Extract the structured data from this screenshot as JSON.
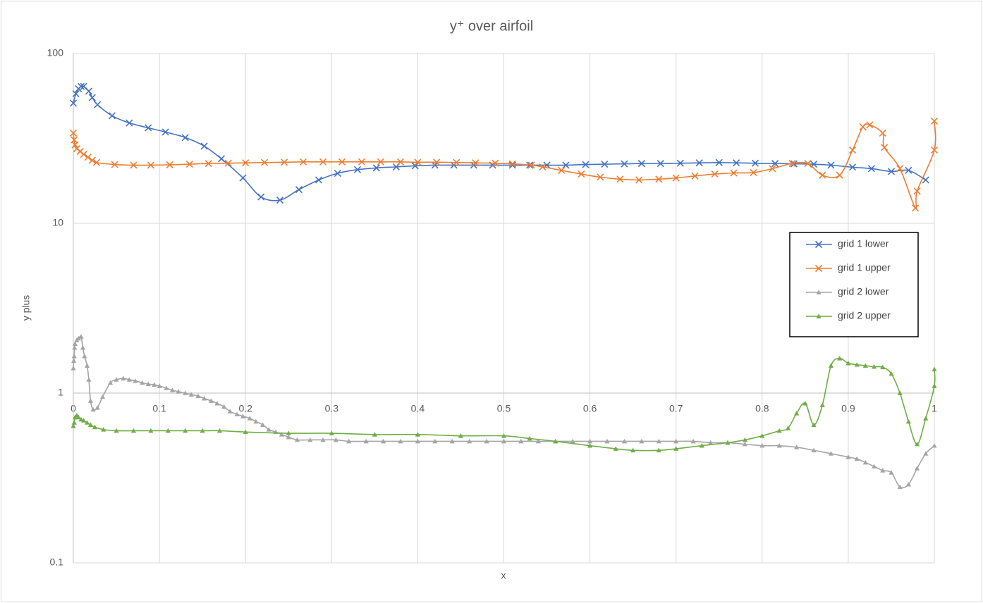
{
  "chart_data": {
    "type": "scatter",
    "title": "y⁺ over airfoil",
    "x_label": "x",
    "y_label": "y plus",
    "xlim": [
      0,
      1
    ],
    "xticks": [
      0,
      0.1,
      0.2,
      0.3,
      0.4,
      0.5,
      0.6,
      0.7,
      0.8,
      0.9,
      1
    ],
    "ylim": [
      0.1,
      100
    ],
    "yticks": [
      0.1,
      1,
      10,
      100
    ],
    "y_log": true,
    "x_axis_crosses": 1,
    "grid": true,
    "smooth": true,
    "legend": "right",
    "series": [
      {
        "name": "grid 1 lower",
        "color": "#4472c4",
        "marker": "x",
        "x": [
          0,
          0.003,
          0.006,
          0.009,
          0.012,
          0.018,
          0.022,
          0.028,
          0.045,
          0.065,
          0.087,
          0.107,
          0.13,
          0.152,
          0.172,
          0.197,
          0.218,
          0.24,
          0.262,
          0.285,
          0.307,
          0.33,
          0.352,
          0.375,
          0.397,
          0.42,
          0.442,
          0.465,
          0.487,
          0.51,
          0.53,
          0.55,
          0.572,
          0.595,
          0.617,
          0.64,
          0.66,
          0.682,
          0.705,
          0.727,
          0.75,
          0.77,
          0.792,
          0.815,
          0.837,
          0.86,
          0.88,
          0.905,
          0.927,
          0.95,
          0.97,
          0.99
        ],
        "values": [
          51,
          58,
          62,
          64,
          64,
          60,
          55,
          50,
          43,
          39,
          36.5,
          34.5,
          32,
          28.5,
          24,
          18.5,
          14.3,
          13.7,
          15.8,
          18,
          19.7,
          20.7,
          21.2,
          21.5,
          21.8,
          22,
          22,
          22,
          22,
          22,
          22,
          22,
          22,
          22.2,
          22.3,
          22.4,
          22.5,
          22.5,
          22.6,
          22.7,
          22.8,
          22.7,
          22.6,
          22.5,
          22.4,
          22.3,
          22,
          21.4,
          21,
          20.2,
          20.5,
          18
        ]
      },
      {
        "name": "grid 1 upper",
        "color": "#ed7d31",
        "marker": "x",
        "x": [
          0,
          0.001,
          0.002,
          0.004,
          0.008,
          0.012,
          0.017,
          0.022,
          0.027,
          0.048,
          0.07,
          0.09,
          0.112,
          0.135,
          0.157,
          0.18,
          0.2,
          0.222,
          0.245,
          0.267,
          0.29,
          0.312,
          0.335,
          0.357,
          0.38,
          0.4,
          0.422,
          0.445,
          0.467,
          0.49,
          0.51,
          0.532,
          0.545,
          0.567,
          0.59,
          0.612,
          0.635,
          0.657,
          0.68,
          0.7,
          0.722,
          0.745,
          0.767,
          0.79,
          0.812,
          0.835,
          0.853,
          0.87,
          0.89,
          0.905,
          0.917,
          0.925,
          0.94,
          0.942,
          0.96,
          0.978,
          0.98,
          1,
          1
        ],
        "values": [
          34,
          31,
          29,
          27.5,
          26.5,
          25.5,
          24.5,
          23.5,
          22.8,
          22.2,
          22,
          22,
          22.1,
          22.3,
          22.5,
          22.6,
          22.7,
          22.8,
          22.9,
          23,
          23,
          23,
          23,
          23,
          23,
          22.9,
          22.9,
          22.8,
          22.7,
          22.6,
          22.4,
          22,
          21.5,
          20.5,
          19.5,
          18.7,
          18.2,
          18,
          18.2,
          18.5,
          19,
          19.5,
          19.8,
          19.9,
          21,
          22.5,
          22.5,
          19.2,
          19.2,
          27,
          37,
          38,
          34,
          28,
          21,
          12.3,
          15.5,
          27,
          40
        ]
      },
      {
        "name": "grid 2 lower",
        "color": "#a5a5a5",
        "marker": "triangle",
        "x": [
          0,
          0.0005,
          0.001,
          0.0015,
          0.002,
          0.004,
          0.006,
          0.009,
          0.011,
          0.013,
          0.016,
          0.018,
          0.02,
          0.023,
          0.028,
          0.034,
          0.043,
          0.05,
          0.058,
          0.065,
          0.072,
          0.08,
          0.087,
          0.094,
          0.1,
          0.108,
          0.115,
          0.122,
          0.13,
          0.137,
          0.145,
          0.152,
          0.16,
          0.167,
          0.175,
          0.182,
          0.19,
          0.197,
          0.205,
          0.212,
          0.22,
          0.227,
          0.235,
          0.242,
          0.25,
          0.26,
          0.275,
          0.29,
          0.305,
          0.32,
          0.34,
          0.36,
          0.38,
          0.4,
          0.42,
          0.44,
          0.46,
          0.48,
          0.5,
          0.52,
          0.54,
          0.56,
          0.58,
          0.6,
          0.62,
          0.64,
          0.66,
          0.68,
          0.7,
          0.72,
          0.74,
          0.76,
          0.78,
          0.8,
          0.82,
          0.84,
          0.86,
          0.88,
          0.9,
          0.91,
          0.92,
          0.93,
          0.94,
          0.95,
          0.96,
          0.97,
          0.98,
          0.99,
          1
        ],
        "values": [
          1.4,
          1.55,
          1.65,
          1.85,
          1.95,
          2.05,
          2.1,
          2.15,
          1.85,
          1.65,
          1.45,
          1.2,
          0.9,
          0.8,
          0.82,
          0.95,
          1.15,
          1.2,
          1.22,
          1.2,
          1.18,
          1.15,
          1.13,
          1.12,
          1.1,
          1.07,
          1.04,
          1.02,
          1,
          0.98,
          0.96,
          0.93,
          0.9,
          0.87,
          0.83,
          0.78,
          0.75,
          0.73,
          0.71,
          0.68,
          0.65,
          0.61,
          0.59,
          0.57,
          0.55,
          0.53,
          0.53,
          0.53,
          0.53,
          0.52,
          0.52,
          0.52,
          0.52,
          0.52,
          0.52,
          0.52,
          0.52,
          0.52,
          0.52,
          0.52,
          0.52,
          0.52,
          0.52,
          0.52,
          0.52,
          0.52,
          0.52,
          0.52,
          0.52,
          0.52,
          0.51,
          0.51,
          0.5,
          0.49,
          0.49,
          0.48,
          0.46,
          0.44,
          0.42,
          0.41,
          0.39,
          0.37,
          0.35,
          0.34,
          0.28,
          0.29,
          0.36,
          0.44,
          0.49
        ]
      },
      {
        "name": "grid 2 upper",
        "color": "#70ad47",
        "marker": "triangle",
        "x": [
          0,
          0.001,
          0.002,
          0.004,
          0.006,
          0.009,
          0.012,
          0.016,
          0.02,
          0.025,
          0.035,
          0.05,
          0.07,
          0.09,
          0.11,
          0.13,
          0.15,
          0.17,
          0.2,
          0.25,
          0.3,
          0.35,
          0.4,
          0.45,
          0.5,
          0.53,
          0.56,
          0.6,
          0.63,
          0.65,
          0.68,
          0.7,
          0.73,
          0.76,
          0.78,
          0.8,
          0.82,
          0.83,
          0.84,
          0.85,
          0.86,
          0.87,
          0.88,
          0.89,
          0.9,
          0.91,
          0.92,
          0.93,
          0.94,
          0.95,
          0.96,
          0.97,
          0.98,
          0.99,
          1,
          1
        ],
        "values": [
          0.64,
          0.67,
          0.72,
          0.74,
          0.72,
          0.7,
          0.69,
          0.67,
          0.65,
          0.63,
          0.61,
          0.6,
          0.6,
          0.6,
          0.6,
          0.6,
          0.6,
          0.6,
          0.59,
          0.58,
          0.58,
          0.57,
          0.57,
          0.56,
          0.56,
          0.54,
          0.52,
          0.49,
          0.47,
          0.46,
          0.46,
          0.47,
          0.49,
          0.51,
          0.53,
          0.56,
          0.6,
          0.62,
          0.76,
          0.87,
          0.65,
          0.85,
          1.45,
          1.6,
          1.5,
          1.47,
          1.45,
          1.43,
          1.42,
          1.3,
          1,
          0.68,
          0.5,
          0.71,
          1.1,
          1.38
        ]
      }
    ]
  }
}
